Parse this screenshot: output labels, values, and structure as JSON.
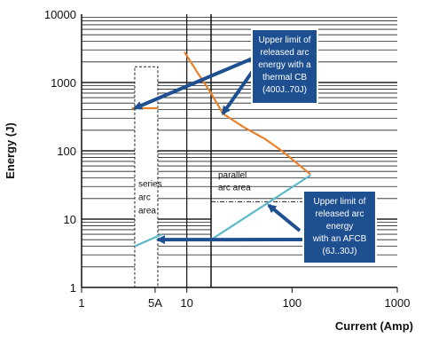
{
  "chart_data": {
    "type": "line",
    "title": "",
    "xlabel": "Current (Amp)",
    "ylabel": "Energy (J)",
    "x_scale": "log",
    "y_scale": "log",
    "xlim": [
      1,
      1000
    ],
    "ylim": [
      1,
      10000
    ],
    "x_ticks": [
      {
        "value": 1,
        "label": "1"
      },
      {
        "value": 5,
        "label": "5A"
      },
      {
        "value": 10,
        "label": "10"
      },
      {
        "value": 100,
        "label": "100"
      },
      {
        "value": 1000,
        "label": "1000"
      }
    ],
    "y_ticks": [
      {
        "value": 1,
        "label": "1"
      },
      {
        "value": 10,
        "label": "10"
      },
      {
        "value": 100,
        "label": "100"
      },
      {
        "value": 1000,
        "label": "1000"
      },
      {
        "value": 10000,
        "label": "10000"
      }
    ],
    "grid": "horizontal minor lines",
    "series": [
      {
        "color": "#e8812b",
        "points": [
          [
            3,
            420
          ],
          [
            5.3,
            420
          ]
        ]
      },
      {
        "color": "#e8812b",
        "points": [
          [
            9.5,
            2800
          ],
          [
            13,
            1300
          ],
          [
            17,
            700
          ],
          [
            22,
            350
          ],
          [
            35,
            220
          ],
          [
            55,
            150
          ],
          [
            80,
            100
          ],
          [
            150,
            45
          ]
        ]
      },
      {
        "color": "#5bb8c8",
        "points": [
          [
            3.2,
            4
          ],
          [
            5.8,
            6
          ]
        ]
      },
      {
        "color": "#5bb8c8",
        "points": [
          [
            17,
            5
          ],
          [
            150,
            44
          ]
        ]
      }
    ],
    "regions": [
      {
        "lines": [
          "series",
          "arc",
          "area"
        ],
        "x": [
          3.2,
          5.3
        ],
        "y": [
          1,
          1700
        ],
        "style": "dashed"
      },
      {
        "lines": [
          "parallel",
          "arc area"
        ],
        "x": [
          17,
          1000
        ],
        "y": [
          1,
          10000
        ],
        "style": "dashed-top"
      }
    ],
    "annotations": [
      {
        "lines": [
          "Upper limit of",
          "released arc",
          "energy with a",
          "thermal CB",
          "(400J..70J)"
        ],
        "color": "#1d4f91",
        "arrows_to": [
          [
            3.2,
            420
          ],
          [
            22,
            350
          ]
        ]
      },
      {
        "lines": [
          "Upper limit of",
          "released arc",
          "energy",
          "with an AFCB",
          "(6J..30J)"
        ],
        "color": "#1d4f91",
        "arrows_to": [
          [
            5.3,
            5
          ],
          [
            60,
            16
          ]
        ]
      }
    ]
  }
}
